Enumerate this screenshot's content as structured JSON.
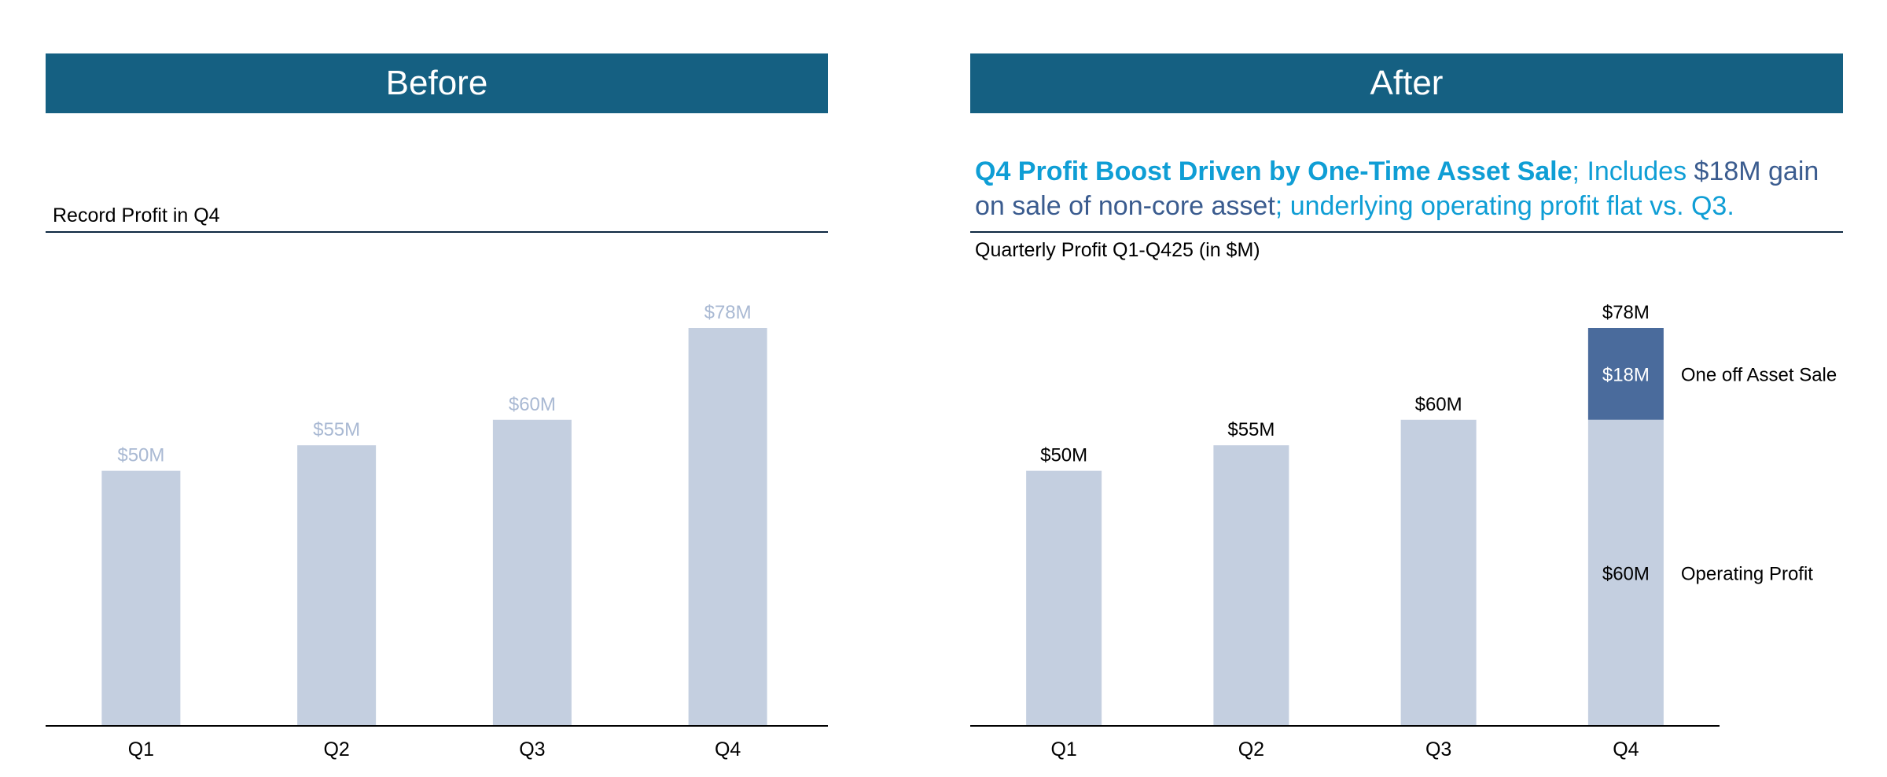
{
  "panels": {
    "before": {
      "header": "Before",
      "subtitle": "Record Profit in Q4"
    },
    "after": {
      "header": "After",
      "headline": {
        "part1": "Q4 Profit Boost Driven by One-Time Asset Sale",
        "part2": "; Includes ",
        "part3": "$18M gain on sale of non-core asset",
        "part4": "; underlying operating profit flat vs. Q3."
      },
      "subtitle": "Quarterly Profit Q1-Q425 (in $M)"
    }
  },
  "colors": {
    "header": "#156082",
    "bar_light": "#c4cfe0",
    "bar_dark": "#4a6b9c",
    "label_muted": "#a9b9d3",
    "headline_blue": "#0f9ed5",
    "headline_navy": "#3b5c8f"
  },
  "chart_data": [
    {
      "type": "bar",
      "categories": [
        "Q1",
        "Q2",
        "Q3",
        "Q4"
      ],
      "values": [
        50,
        55,
        60,
        78
      ],
      "data_labels": [
        "$50M",
        "$55M",
        "$60M",
        "$78M"
      ],
      "title": "Record Profit in Q4",
      "ylim": [
        0,
        78
      ]
    },
    {
      "type": "bar",
      "stacked": true,
      "categories": [
        "Q1",
        "Q2",
        "Q3",
        "Q4"
      ],
      "values": [
        50,
        55,
        60,
        78
      ],
      "data_labels": [
        "$50M",
        "$55M",
        "$60M",
        "$78M"
      ],
      "title": "Quarterly Profit Q1-Q425 (in $M)",
      "ylim": [
        0,
        78
      ],
      "q4_stack": [
        {
          "name": "Operating Profit",
          "value": 60,
          "label": "$60M"
        },
        {
          "name": "One off Asset Sale",
          "value": 18,
          "label": "$18M"
        }
      ]
    }
  ]
}
